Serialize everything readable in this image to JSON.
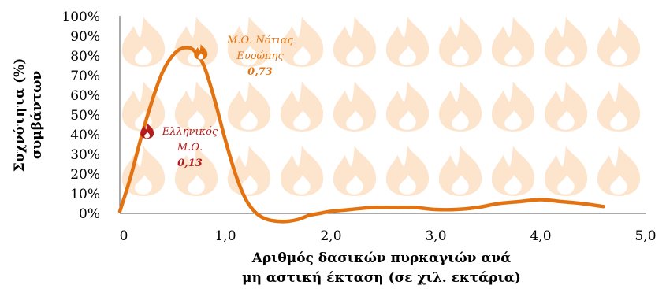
{
  "chart_data": {
    "type": "line",
    "ylabel": [
      "Συχνότητα (%)",
      "συμβάντων"
    ],
    "xlabel": [
      "Αριθμός δασικών πυρκαγιών ανά",
      "μη αστική έκταση (σε χιλ. εκτάρια)"
    ],
    "x_ticks": [
      "0",
      "1,0",
      "2,0",
      "3,0",
      "4,0",
      "5,0"
    ],
    "y_ticks": [
      "0%",
      "10%",
      "20%",
      "30%",
      "40%",
      "50%",
      "60%",
      "70%",
      "80%",
      "90%",
      "100%"
    ],
    "xlim": [
      0,
      5
    ],
    "ylim": [
      0,
      1
    ],
    "grid": false,
    "series": [
      {
        "x": [
          0.0,
          0.1,
          0.2,
          0.3,
          0.4,
          0.5,
          0.6,
          0.7,
          0.8,
          0.9,
          1.0,
          1.1,
          1.2,
          1.3,
          1.4,
          1.5,
          1.6,
          1.7,
          1.8,
          1.9,
          2.0,
          2.2,
          2.4,
          2.6,
          2.8,
          3.0,
          3.2,
          3.4,
          3.6,
          3.8,
          4.0,
          4.2,
          4.4,
          4.6
        ],
        "y": [
          0.01,
          0.18,
          0.38,
          0.56,
          0.71,
          0.8,
          0.84,
          0.83,
          0.75,
          0.58,
          0.38,
          0.2,
          0.07,
          0.0,
          -0.03,
          -0.04,
          -0.04,
          -0.03,
          -0.01,
          0.0,
          0.01,
          0.02,
          0.03,
          0.03,
          0.03,
          0.02,
          0.02,
          0.03,
          0.05,
          0.06,
          0.07,
          0.06,
          0.05,
          0.035
        ]
      }
    ],
    "line_color": "#e37311",
    "background_motif_color": "#fde4cc",
    "annotations": [
      {
        "lines": [
          "Μ.Ο. Νότιας",
          "Ευρώπης",
          "0,73"
        ],
        "x": 0.77,
        "y": 0.82,
        "color": "#e37311"
      },
      {
        "lines": [
          "Ελληνικός",
          "Μ.Ο.",
          "0,13"
        ],
        "x": 0.26,
        "y": 0.42,
        "color": "#b71c1c"
      }
    ]
  }
}
